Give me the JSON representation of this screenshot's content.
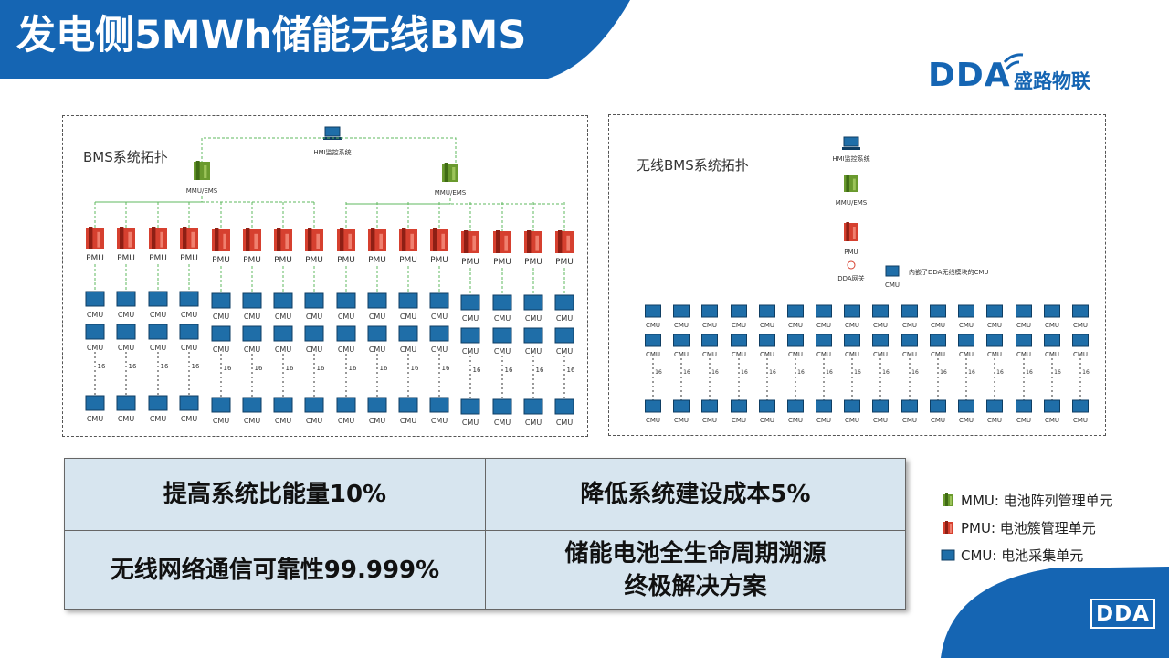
{
  "title": "发电侧5MWh储能无线BMS",
  "logo": {
    "brand": "DDA",
    "name": "盛路物联"
  },
  "corner_logo": "DDA",
  "left_diagram": {
    "title": "BMS系统拓扑",
    "hmi_label": "HMI监控系统",
    "mmu_label": "MMU/EMS",
    "pmu_label": "PMU",
    "cmu_label": "CMU",
    "count_label": "16"
  },
  "right_diagram": {
    "title": "无线BMS系统拓扑",
    "hmi_label": "HMI监控系统",
    "mmu_label": "MMU/EMS",
    "pmu_label": "PMU",
    "gateway_label": "DDA网关",
    "cmu_note": "内嵌了DDA无线模块的CMU",
    "cmu_label": "CMU",
    "count_label": "16"
  },
  "benefits": {
    "b1": "提高系统比能量10%",
    "b2": "降低系统建设成本5%",
    "b3": "无线网络通信可靠性99.999%",
    "b4_line1": "储能电池全生命周期溯源",
    "b4_line2": "终极解决方案"
  },
  "legend": {
    "mmu": "MMU: 电池阵列管理单元",
    "pmu": "PMU: 电池簇管理单元",
    "cmu": "CMU: 电池采集单元"
  },
  "colors": {
    "brand_blue": "#1565b3",
    "cell_bg": "#d7e5ef",
    "mmu_green": "#6a9a2e",
    "pmu_red": "#d6402f",
    "cmu_blue": "#1f6ea8"
  }
}
